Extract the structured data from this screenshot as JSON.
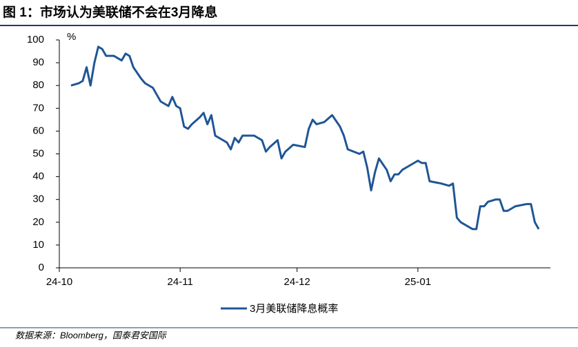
{
  "header": {
    "title": "图 1：市场认为美联储不会在3月降息"
  },
  "chart_data": {
    "type": "line",
    "y_label": "%",
    "x": [
      3,
      5,
      6,
      7,
      8,
      9,
      10,
      11,
      12,
      14,
      16,
      17,
      18,
      19,
      21,
      22,
      24,
      25,
      26,
      28,
      29,
      30,
      31,
      32,
      33,
      34,
      36,
      37,
      38,
      39,
      40,
      42,
      43,
      44,
      45,
      46,
      47,
      50,
      52,
      53,
      54,
      56,
      57,
      58,
      60,
      63,
      64,
      65,
      66,
      68,
      70,
      72,
      73,
      74,
      77,
      78,
      79,
      80,
      81,
      82,
      84,
      85,
      86,
      87,
      88,
      91,
      92,
      93,
      94,
      95,
      98,
      100,
      101,
      102,
      103,
      106,
      107,
      108,
      109,
      110,
      112,
      113,
      114,
      115,
      117,
      120,
      121,
      122,
      123
    ],
    "series": [
      {
        "name": "3月美联储降息概率",
        "color": "#1f5596",
        "values": [
          80,
          81,
          82,
          88,
          80,
          90,
          97,
          96,
          93,
          93,
          91,
          94,
          93,
          88,
          83,
          81,
          79,
          76,
          73,
          71,
          75,
          71,
          70,
          62,
          61,
          63,
          66,
          68,
          63,
          67,
          58,
          56,
          55,
          52,
          57,
          55,
          58,
          58,
          56,
          51,
          53,
          56,
          48,
          51,
          54,
          53,
          61,
          65,
          63,
          64,
          67,
          62,
          58,
          52,
          50,
          51,
          44,
          34,
          42,
          48,
          43,
          38,
          41,
          41,
          43,
          46,
          47,
          46,
          46,
          38,
          37,
          36,
          37,
          22,
          20,
          17,
          17,
          27,
          27,
          29,
          30,
          30,
          25,
          25,
          27,
          28,
          28,
          20,
          17
        ]
      }
    ],
    "xlim": [
      0,
      126
    ],
    "xticks": [
      {
        "value": 0,
        "label": "24-10"
      },
      {
        "value": 31,
        "label": "24-11"
      },
      {
        "value": 61,
        "label": "24-12"
      },
      {
        "value": 92,
        "label": "25-01"
      }
    ],
    "ylim": [
      0,
      100
    ],
    "yticks": [
      0,
      10,
      20,
      30,
      40,
      50,
      60,
      70,
      80,
      90,
      100
    ],
    "grid": false
  },
  "source": "数据来源：Bloomberg，国泰君安国际"
}
